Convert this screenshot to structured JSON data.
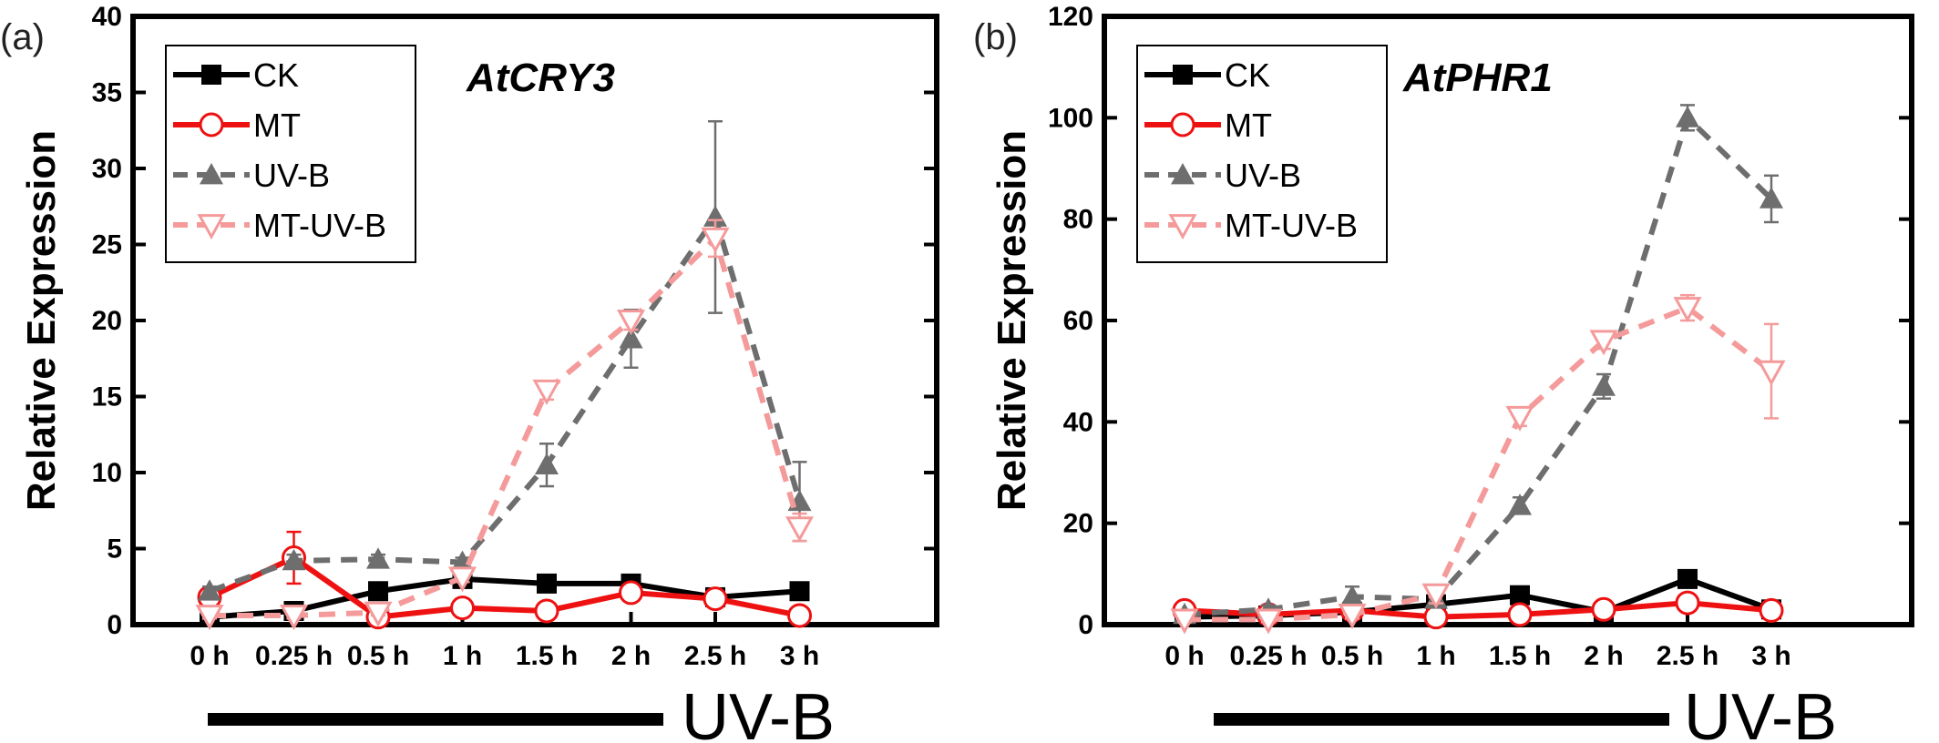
{
  "chart_data": [
    {
      "type": "line",
      "panel": "(a)",
      "title": "AtCRY3",
      "ylabel": "Relative Expression",
      "xlabel": "",
      "ylim": [
        0,
        40
      ],
      "yticks": [
        "0",
        "5",
        "10",
        "15",
        "20",
        "25",
        "30",
        "35",
        "40"
      ],
      "categories": [
        "0 h",
        "0.25 h",
        "0.5 h",
        "1 h",
        "1.5 h",
        "2 h",
        "2.5 h",
        "3 h"
      ],
      "treatment_label": "UV-B",
      "legend_position": "top-left",
      "series": [
        {
          "name": "CK",
          "color": "#000000",
          "marker": "square",
          "dash": false,
          "values": [
            0.5,
            0.9,
            2.2,
            3.0,
            2.7,
            2.7,
            1.8,
            2.2
          ],
          "errors": [
            0.2,
            0.2,
            0.3,
            0.3,
            0.2,
            0.3,
            0.2,
            0.2
          ]
        },
        {
          "name": "MT",
          "color": "#ee1111",
          "marker": "circle-open",
          "dash": false,
          "values": [
            1.8,
            4.4,
            0.5,
            1.1,
            0.9,
            2.1,
            1.7,
            0.6
          ],
          "errors": [
            0.2,
            1.7,
            0.2,
            0.2,
            0.2,
            0.3,
            0.3,
            0.2
          ]
        },
        {
          "name": "UV-B",
          "color": "#6e6e6e",
          "marker": "triangle-up",
          "dash": true,
          "values": [
            2.2,
            4.2,
            4.3,
            4.1,
            10.5,
            18.8,
            26.8,
            8.1
          ],
          "errors": [
            0.3,
            0.4,
            0.3,
            0.3,
            1.4,
            1.9,
            6.3,
            2.6
          ]
        },
        {
          "name": "MT-UV-B",
          "color": "#f59a9a",
          "marker": "triangle-down-open",
          "dash": true,
          "values": [
            0.6,
            0.6,
            0.8,
            3.1,
            15.4,
            20.0,
            25.4,
            6.4
          ],
          "errors": [
            0.2,
            0.2,
            0.2,
            0.3,
            0.6,
            0.6,
            1.2,
            0.9
          ]
        }
      ]
    },
    {
      "type": "line",
      "panel": "(b)",
      "title": "AtPHR1",
      "ylabel": "Relative Expression",
      "xlabel": "",
      "ylim": [
        0,
        120
      ],
      "yticks": [
        "0",
        "20",
        "40",
        "60",
        "80",
        "100",
        "120"
      ],
      "categories": [
        "0 h",
        "0.25 h",
        "0.5 h",
        "1 h",
        "1.5 h",
        "2 h",
        "2.5 h",
        "3 h"
      ],
      "treatment_label": "UV-B",
      "legend_position": "top-left",
      "series": [
        {
          "name": "CK",
          "color": "#000000",
          "marker": "square",
          "dash": false,
          "values": [
            1.5,
            1.8,
            2.5,
            4.0,
            5.8,
            2.5,
            9.0,
            3.0
          ],
          "errors": [
            0.5,
            0.5,
            0.6,
            0.8,
            0.8,
            0.6,
            1.0,
            0.6
          ]
        },
        {
          "name": "MT",
          "color": "#ee1111",
          "marker": "circle-open",
          "dash": false,
          "values": [
            2.8,
            2.0,
            2.8,
            1.5,
            2.0,
            3.0,
            4.3,
            2.8
          ],
          "errors": [
            0.5,
            0.5,
            0.5,
            0.5,
            0.5,
            0.5,
            0.8,
            0.5
          ]
        },
        {
          "name": "UV-B",
          "color": "#6e6e6e",
          "marker": "triangle-up",
          "dash": true,
          "values": [
            2.0,
            3.0,
            5.5,
            5.0,
            23.5,
            47.0,
            100.0,
            84.0
          ],
          "errors": [
            0.6,
            0.8,
            2.0,
            1.0,
            1.6,
            2.4,
            2.5,
            4.6
          ]
        },
        {
          "name": "MT-UV-B",
          "color": "#f59a9a",
          "marker": "triangle-down-open",
          "dash": true,
          "values": [
            1.0,
            1.0,
            2.0,
            6.0,
            41.0,
            56.0,
            62.5,
            50.0
          ],
          "errors": [
            0.5,
            0.5,
            0.8,
            1.8,
            1.8,
            1.6,
            2.5,
            9.3
          ]
        }
      ]
    }
  ]
}
